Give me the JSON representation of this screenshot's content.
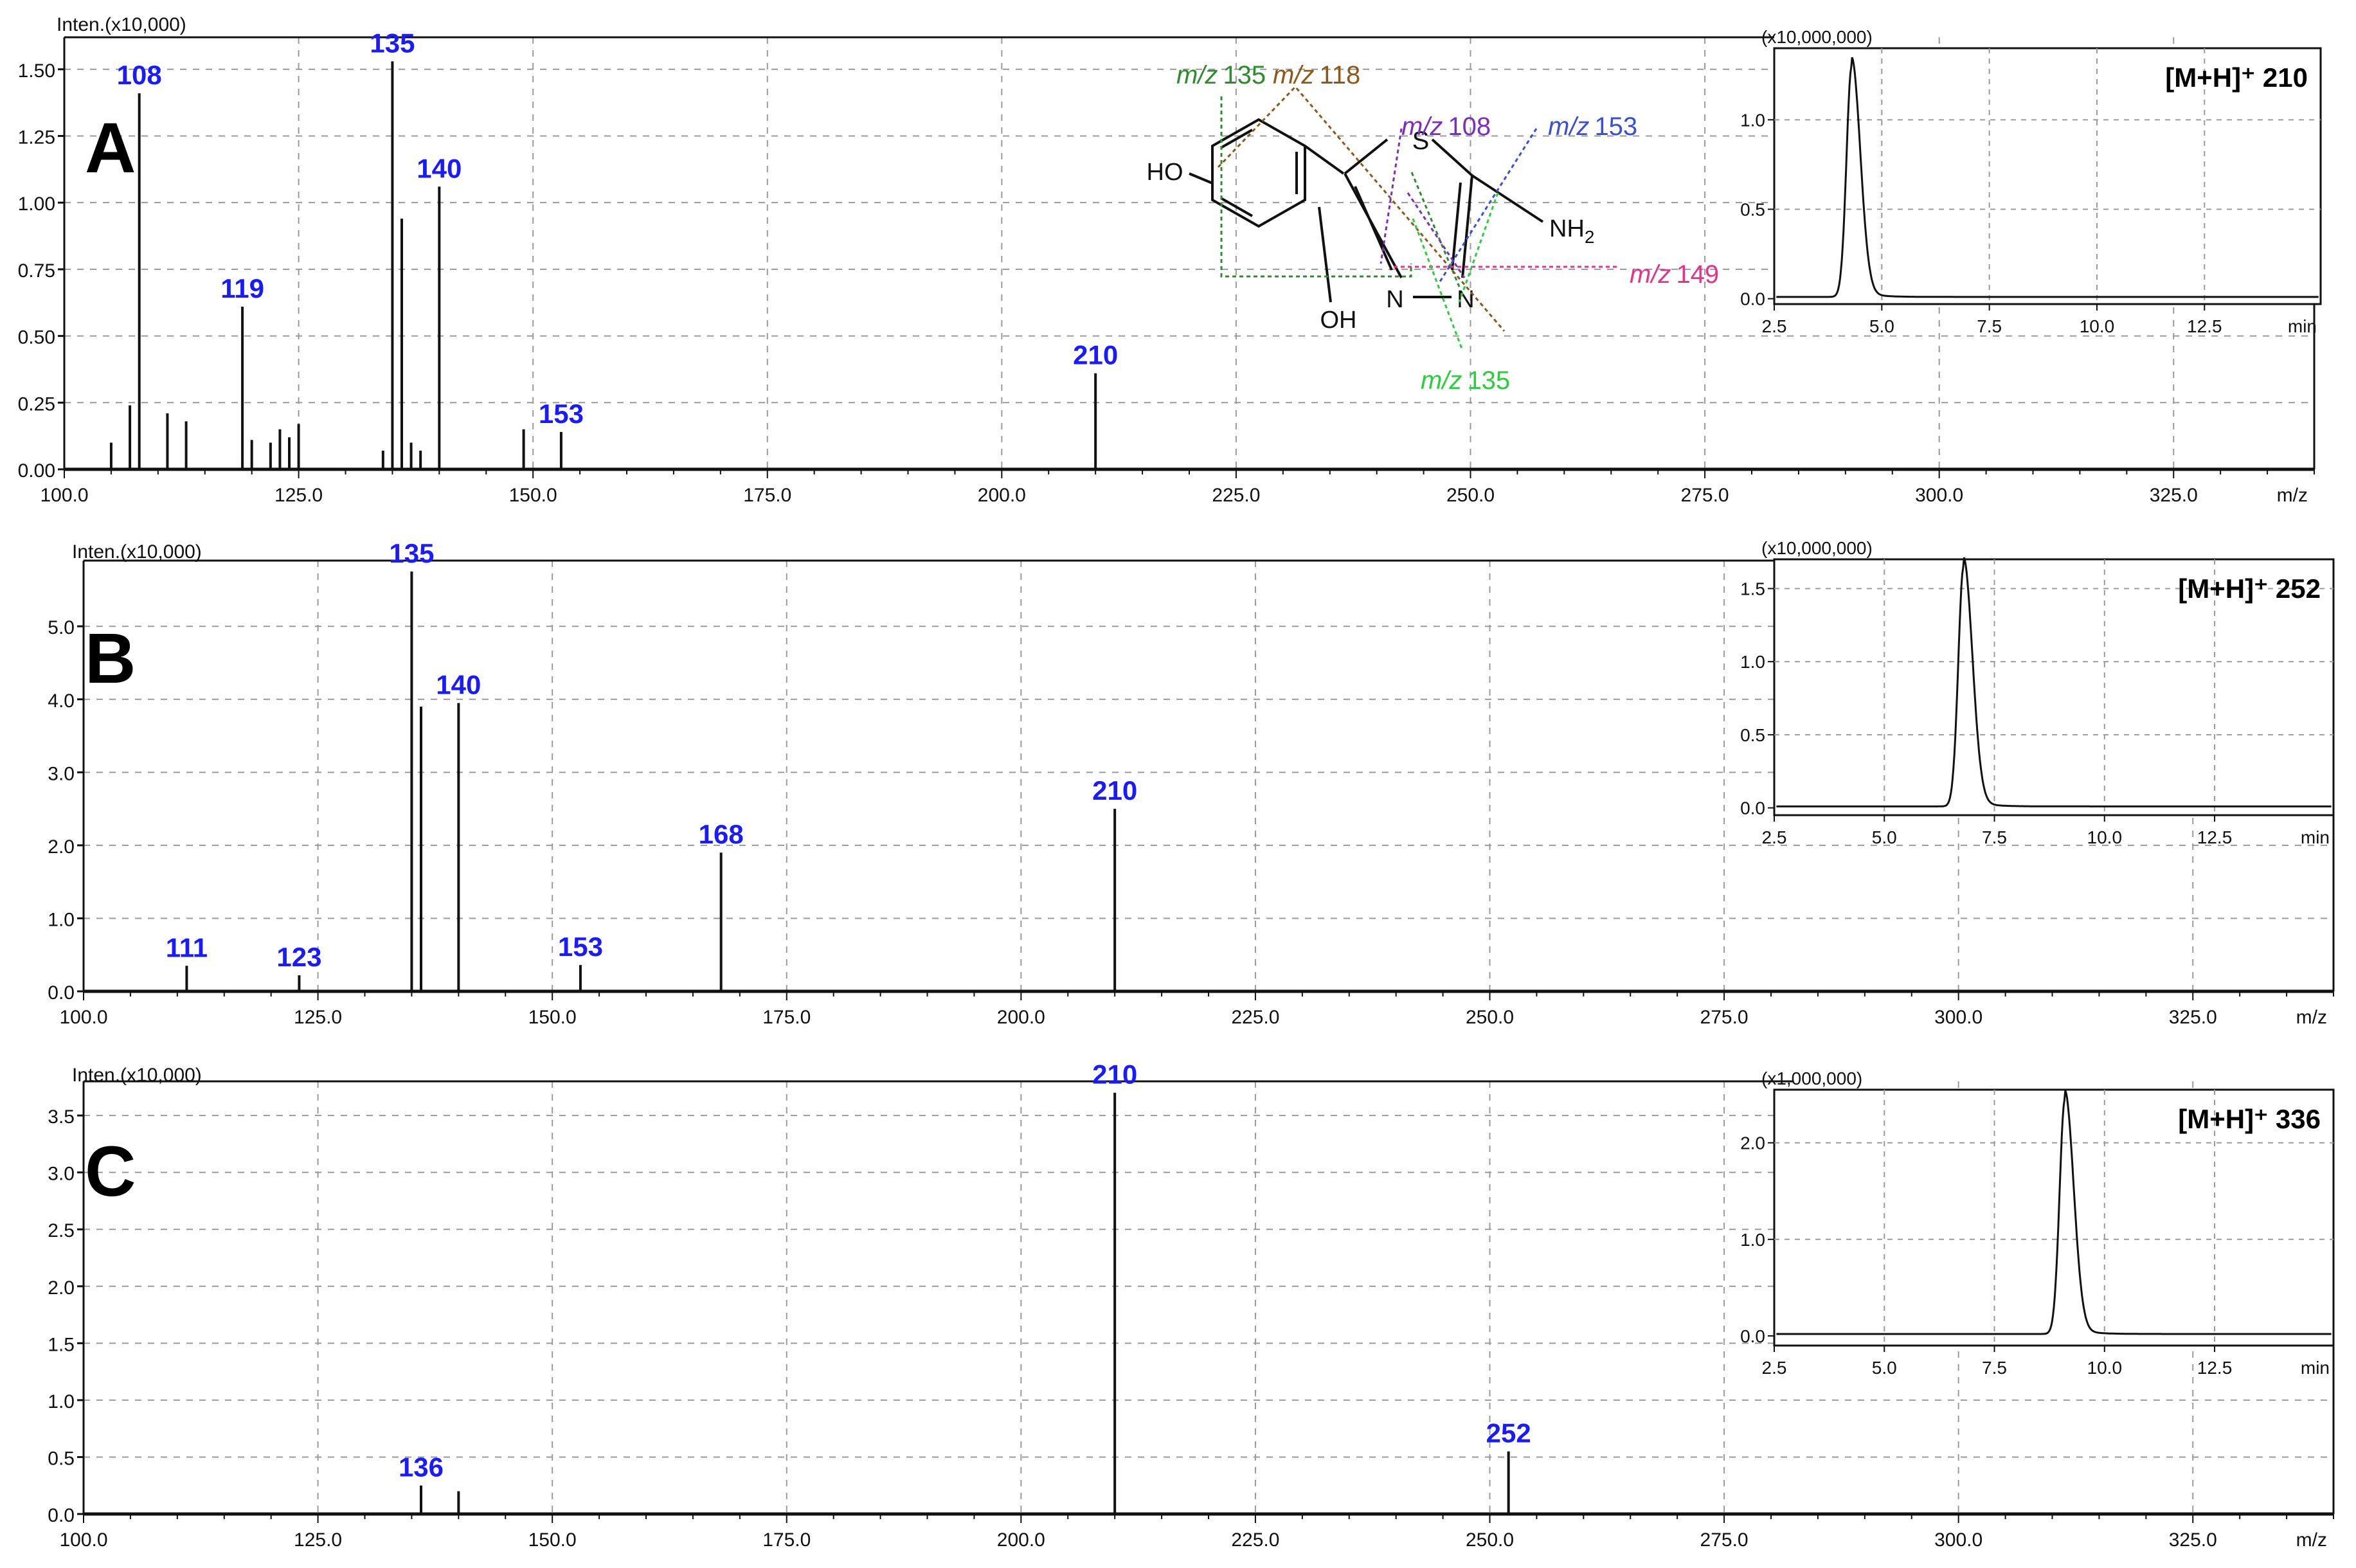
{
  "figure": {
    "panels": [
      {
        "letter": "A",
        "inset_label": "[M+H]⁺ 210"
      },
      {
        "letter": "B",
        "inset_label": "[M+H]⁺ 252"
      },
      {
        "letter": "C",
        "inset_label": "[M+H]⁺ 336"
      }
    ],
    "structure": {
      "atoms": {
        "ho": "HO",
        "oh": "OH",
        "s": "S",
        "n1": "N",
        "n2": "N",
        "nh2_main": "NH",
        "nh2_sub": "2"
      },
      "fragments": [
        {
          "prefix": "m/z",
          "value": "135",
          "color": "#2e8b2e"
        },
        {
          "prefix": "m/z",
          "value": "118",
          "color": "#8b5a1b"
        },
        {
          "prefix": "m/z",
          "value": "108",
          "color": "#7b2fbe"
        },
        {
          "prefix": "m/z",
          "value": "153",
          "color": "#3a4fd6"
        },
        {
          "prefix": "m/z",
          "value": "149",
          "color": "#e5338a"
        },
        {
          "prefix": "m/z",
          "value": "135",
          "color": "#2ecc40"
        }
      ]
    }
  },
  "chart_data": [
    {
      "type": "bar",
      "panel": "A",
      "subtitle": "Inten.(x10,000)",
      "xlabel": "m/z",
      "xlim": [
        100,
        340
      ],
      "xticks": [
        "100.0",
        "125.0",
        "150.0",
        "175.0",
        "200.0",
        "225.0",
        "250.0",
        "275.0",
        "300.0",
        "325.0"
      ],
      "ylim": [
        0,
        1.62
      ],
      "yticks": [
        "0.00",
        "0.25",
        "0.50",
        "0.75",
        "1.00",
        "1.25",
        "1.50"
      ],
      "grid": true,
      "peaks": [
        {
          "mz": 105,
          "intensity": 0.1
        },
        {
          "mz": 107,
          "intensity": 0.24
        },
        {
          "mz": 108,
          "intensity": 1.41,
          "label": "108"
        },
        {
          "mz": 111,
          "intensity": 0.21
        },
        {
          "mz": 113,
          "intensity": 0.18
        },
        {
          "mz": 119,
          "intensity": 0.61,
          "label": "119"
        },
        {
          "mz": 120,
          "intensity": 0.11
        },
        {
          "mz": 122,
          "intensity": 0.1
        },
        {
          "mz": 123,
          "intensity": 0.15
        },
        {
          "mz": 124,
          "intensity": 0.12
        },
        {
          "mz": 125,
          "intensity": 0.17
        },
        {
          "mz": 134,
          "intensity": 0.07
        },
        {
          "mz": 135,
          "intensity": 1.53,
          "label": "135"
        },
        {
          "mz": 136,
          "intensity": 0.94
        },
        {
          "mz": 137,
          "intensity": 0.1
        },
        {
          "mz": 138,
          "intensity": 0.07
        },
        {
          "mz": 140,
          "intensity": 1.06,
          "label": "140"
        },
        {
          "mz": 149,
          "intensity": 0.15
        },
        {
          "mz": 153,
          "intensity": 0.14,
          "label": "153"
        },
        {
          "mz": 210,
          "intensity": 0.36,
          "label": "210"
        }
      ],
      "inset": {
        "type": "line",
        "subtitle": "(x10,000,000)",
        "xlabel": "min",
        "xlim": [
          2.5,
          15.2
        ],
        "xticks": [
          "2.5",
          "5.0",
          "7.5",
          "10.0",
          "12.5"
        ],
        "ylim": [
          -0.03,
          1.4
        ],
        "yticks": [
          "0.0",
          "0.5",
          "1.0"
        ],
        "peak_rt": 4.3,
        "peak_height": 1.3,
        "baseline": 0.01
      }
    },
    {
      "type": "bar",
      "panel": "B",
      "subtitle": "Inten.(x10,000)",
      "xlabel": "m/z",
      "xlim": [
        100,
        340
      ],
      "xticks": [
        "100.0",
        "125.0",
        "150.0",
        "175.0",
        "200.0",
        "225.0",
        "250.0",
        "275.0",
        "300.0",
        "325.0"
      ],
      "ylim": [
        0,
        5.9
      ],
      "yticks": [
        "0.0",
        "1.0",
        "2.0",
        "3.0",
        "4.0",
        "5.0"
      ],
      "grid": true,
      "peaks": [
        {
          "mz": 111,
          "intensity": 0.35,
          "label": "111"
        },
        {
          "mz": 123,
          "intensity": 0.22,
          "label": "123"
        },
        {
          "mz": 135,
          "intensity": 5.75,
          "label": "135"
        },
        {
          "mz": 136,
          "intensity": 3.9
        },
        {
          "mz": 140,
          "intensity": 3.95,
          "label": "140"
        },
        {
          "mz": 153,
          "intensity": 0.36,
          "label": "153"
        },
        {
          "mz": 168,
          "intensity": 1.9,
          "label": "168"
        },
        {
          "mz": 210,
          "intensity": 2.5,
          "label": "210"
        }
      ],
      "inset": {
        "type": "line",
        "subtitle": "(x10,000,000)",
        "xlabel": "min",
        "xlim": [
          2.5,
          15.2
        ],
        "xticks": [
          "2.5",
          "5.0",
          "7.5",
          "10.0",
          "12.5"
        ],
        "ylim": [
          -0.05,
          1.7
        ],
        "yticks": [
          "0.0",
          "0.5",
          "1.0",
          "1.5"
        ],
        "peak_rt": 6.8,
        "peak_height": 1.65,
        "baseline": 0.01
      }
    },
    {
      "type": "bar",
      "panel": "C",
      "subtitle": "Inten.(x10,000)",
      "xlabel": "m/z",
      "xlim": [
        100,
        340
      ],
      "xticks": [
        "100.0",
        "125.0",
        "150.0",
        "175.0",
        "200.0",
        "225.0",
        "250.0",
        "275.0",
        "300.0",
        "325.0"
      ],
      "ylim": [
        0,
        3.8
      ],
      "yticks": [
        "0.0",
        "0.5",
        "1.0",
        "1.5",
        "2.0",
        "2.5",
        "3.0",
        "3.5"
      ],
      "grid": true,
      "peaks": [
        {
          "mz": 136,
          "intensity": 0.25,
          "label": "136"
        },
        {
          "mz": 140,
          "intensity": 0.2
        },
        {
          "mz": 210,
          "intensity": 3.7,
          "label": "210"
        },
        {
          "mz": 252,
          "intensity": 0.55,
          "label": "252"
        }
      ],
      "inset": {
        "type": "line",
        "subtitle": "(x1,000,000)",
        "xlabel": "min",
        "xlim": [
          2.5,
          15.2
        ],
        "xticks": [
          "2.5",
          "5.0",
          "7.5",
          "10.0",
          "12.5"
        ],
        "ylim": [
          -0.1,
          2.55
        ],
        "yticks": [
          "0.0",
          "1.0",
          "2.0"
        ],
        "peak_rt": 9.1,
        "peak_height": 2.45,
        "baseline": 0.02
      }
    }
  ]
}
